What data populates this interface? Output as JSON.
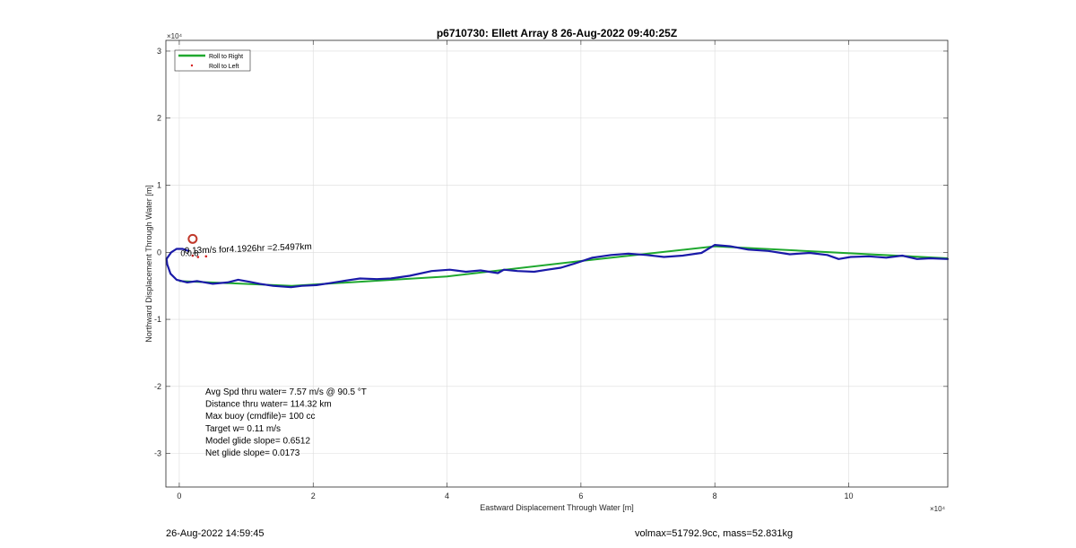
{
  "chart_data": {
    "type": "line",
    "title": "p6710730: Ellett Array 8 26-Aug-2022 09:40:25Z",
    "xlabel": "Eastward Displacement Through Water [m]",
    "ylabel": "Northward Displacement Through Water [m]",
    "x_exponent_label": "×10⁴",
    "y_exponent_label": "×10⁴",
    "xlim": [
      -2000,
      114800
    ],
    "ylim": [
      -35000,
      31600
    ],
    "xticks": [
      0,
      20000,
      40000,
      60000,
      80000,
      100000
    ],
    "xtick_labels": [
      "0",
      "2",
      "4",
      "6",
      "8",
      "10"
    ],
    "yticks": [
      -30000,
      -20000,
      -10000,
      0,
      10000,
      20000,
      30000
    ],
    "ytick_labels": [
      "-3",
      "-2",
      "-1",
      "0",
      "1",
      "2",
      "3"
    ],
    "grid": true,
    "legend_position": "top-left",
    "colors": {
      "roll_right": "#1fa82f",
      "roll_left": "#d62020",
      "track": "#1a1aa8",
      "marker": "#c0392b"
    },
    "series": [
      {
        "name": "Roll to Right",
        "style": "line",
        "points": [
          [
            0,
            -4300
          ],
          [
            16800,
            -5000
          ],
          [
            40000,
            -3600
          ],
          [
            60000,
            -1300
          ],
          [
            80000,
            900
          ],
          [
            114800,
            -900
          ]
        ]
      },
      {
        "name": "Roll to Left",
        "style": "dots",
        "points": [
          [
            2000,
            -500
          ],
          [
            2800,
            -700
          ],
          [
            4000,
            -600
          ]
        ]
      }
    ],
    "track": {
      "points": [
        [
          -1900,
          -1000
        ],
        [
          -1800,
          -1800
        ],
        [
          -1300,
          -3200
        ],
        [
          -400,
          -4100
        ],
        [
          1200,
          -4500
        ],
        [
          2700,
          -4300
        ],
        [
          5000,
          -4700
        ],
        [
          7200,
          -4500
        ],
        [
          8800,
          -4100
        ],
        [
          10500,
          -4400
        ],
        [
          12000,
          -4700
        ],
        [
          14000,
          -5000
        ],
        [
          16700,
          -5200
        ],
        [
          18300,
          -5000
        ],
        [
          20500,
          -4900
        ],
        [
          22500,
          -4600
        ],
        [
          25000,
          -4200
        ],
        [
          27000,
          -3900
        ],
        [
          29500,
          -4000
        ],
        [
          31600,
          -3900
        ],
        [
          34400,
          -3500
        ],
        [
          37700,
          -2800
        ],
        [
          40400,
          -2600
        ],
        [
          42800,
          -2900
        ],
        [
          45000,
          -2700
        ],
        [
          47600,
          -3100
        ],
        [
          48500,
          -2600
        ],
        [
          50500,
          -2800
        ],
        [
          53000,
          -2900
        ],
        [
          55000,
          -2600
        ],
        [
          57000,
          -2300
        ],
        [
          59000,
          -1700
        ],
        [
          61700,
          -800
        ],
        [
          64500,
          -400
        ],
        [
          67100,
          -200
        ],
        [
          69800,
          -400
        ],
        [
          72400,
          -700
        ],
        [
          75200,
          -500
        ],
        [
          78000,
          -100
        ],
        [
          80000,
          1100
        ],
        [
          82300,
          900
        ],
        [
          85000,
          400
        ],
        [
          88000,
          200
        ],
        [
          91200,
          -300
        ],
        [
          94200,
          -100
        ],
        [
          96800,
          -400
        ],
        [
          98500,
          -1000
        ],
        [
          100300,
          -700
        ],
        [
          103000,
          -600
        ],
        [
          105600,
          -800
        ],
        [
          108000,
          -500
        ],
        [
          110200,
          -1000
        ],
        [
          112200,
          -900
        ],
        [
          114800,
          -1000
        ]
      ],
      "hook": [
        [
          -1900,
          -1000
        ],
        [
          -1200,
          0
        ],
        [
          -400,
          500
        ],
        [
          500,
          500
        ],
        [
          1400,
          200
        ]
      ]
    },
    "marker": {
      "type": "circle",
      "x": 2000,
      "y": 2000
    },
    "annotations": [
      {
        "id": "speed",
        "text": "0.13m/s for4.1926hr =2.5497km",
        "x": 800,
        "y": -200
      },
      {
        "id": "cluster",
        "text": "0.0.8",
        "x": 200,
        "y": -550
      }
    ],
    "stats_lines": [
      "Avg Spd thru water=  7.57 m/s @  90.5 °T",
      "Distance thru water= 114.32 km",
      "Max buoy (cmdfile)= 100 cc",
      "Target w= 0.11 m/s",
      "Model glide slope= 0.6512",
      "Net glide slope= 0.0173"
    ]
  },
  "footer": {
    "timestamp": "26-Aug-2022 14:59:45",
    "vol_mass": "volmax=51792.9cc, mass=52.831kg"
  }
}
